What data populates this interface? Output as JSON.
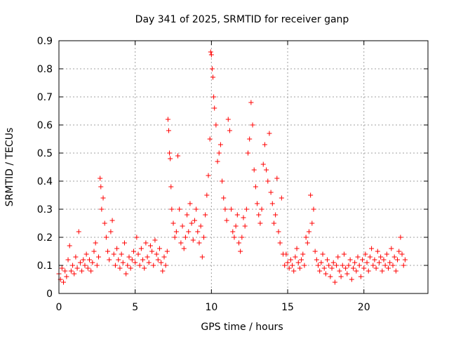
{
  "chart_data": {
    "type": "scatter",
    "title": "Day 341 of 2025, SRMTID for receiver ganp",
    "xlabel": "GPS time / hours",
    "ylabel": "SRMTID / TECUs",
    "xlim": [
      0,
      24.2
    ],
    "ylim": [
      0,
      0.9
    ],
    "xticks": [
      {
        "value": 0,
        "label": "0"
      },
      {
        "value": 5,
        "label": "5"
      },
      {
        "value": 10,
        "label": "10"
      },
      {
        "value": 15,
        "label": "15"
      },
      {
        "value": 20,
        "label": "20"
      }
    ],
    "yticks": [
      {
        "value": 0,
        "label": "0"
      },
      {
        "value": 0.1,
        "label": "0.1"
      },
      {
        "value": 0.2,
        "label": "0.2"
      },
      {
        "value": 0.3,
        "label": "0.3"
      },
      {
        "value": 0.4,
        "label": "0.4"
      },
      {
        "value": 0.5,
        "label": "0.5"
      },
      {
        "value": 0.6,
        "label": "0.6"
      },
      {
        "value": 0.7,
        "label": "0.7"
      },
      {
        "value": 0.8,
        "label": "0.8"
      },
      {
        "value": 0.9,
        "label": "0.9"
      }
    ],
    "grid": true,
    "marker": "+",
    "series": [
      {
        "name": "SRMTID",
        "color": "#ff0000",
        "points": [
          [
            0.0,
            0.07
          ],
          [
            0.1,
            0.05
          ],
          [
            0.2,
            0.09
          ],
          [
            0.3,
            0.04
          ],
          [
            0.4,
            0.08
          ],
          [
            0.5,
            0.06
          ],
          [
            0.6,
            0.12
          ],
          [
            0.7,
            0.17
          ],
          [
            0.8,
            0.08
          ],
          [
            0.9,
            0.1
          ],
          [
            1.0,
            0.07
          ],
          [
            1.1,
            0.13
          ],
          [
            1.2,
            0.09
          ],
          [
            1.3,
            0.22
          ],
          [
            1.4,
            0.11
          ],
          [
            1.5,
            0.08
          ],
          [
            1.6,
            0.12
          ],
          [
            1.7,
            0.1
          ],
          [
            1.8,
            0.14
          ],
          [
            1.9,
            0.09
          ],
          [
            2.0,
            0.12
          ],
          [
            2.1,
            0.08
          ],
          [
            2.2,
            0.11
          ],
          [
            2.3,
            0.15
          ],
          [
            2.4,
            0.18
          ],
          [
            2.5,
            0.1
          ],
          [
            2.6,
            0.13
          ],
          [
            2.7,
            0.41
          ],
          [
            2.75,
            0.38
          ],
          [
            2.8,
            0.3
          ],
          [
            2.9,
            0.34
          ],
          [
            3.0,
            0.25
          ],
          [
            3.1,
            0.2
          ],
          [
            3.2,
            0.15
          ],
          [
            3.3,
            0.12
          ],
          [
            3.4,
            0.22
          ],
          [
            3.5,
            0.26
          ],
          [
            3.6,
            0.14
          ],
          [
            3.7,
            0.1
          ],
          [
            3.8,
            0.16
          ],
          [
            3.9,
            0.12
          ],
          [
            4.0,
            0.09
          ],
          [
            4.1,
            0.14
          ],
          [
            4.2,
            0.11
          ],
          [
            4.3,
            0.18
          ],
          [
            4.4,
            0.07
          ],
          [
            4.5,
            0.1
          ],
          [
            4.6,
            0.13
          ],
          [
            4.7,
            0.09
          ],
          [
            4.8,
            0.12
          ],
          [
            4.9,
            0.15
          ],
          [
            5.0,
            0.11
          ],
          [
            5.1,
            0.2
          ],
          [
            5.2,
            0.14
          ],
          [
            5.3,
            0.1
          ],
          [
            5.4,
            0.16
          ],
          [
            5.5,
            0.12
          ],
          [
            5.6,
            0.09
          ],
          [
            5.7,
            0.18
          ],
          [
            5.8,
            0.13
          ],
          [
            5.9,
            0.11
          ],
          [
            6.0,
            0.17
          ],
          [
            6.1,
            0.15
          ],
          [
            6.2,
            0.1
          ],
          [
            6.3,
            0.19
          ],
          [
            6.4,
            0.14
          ],
          [
            6.5,
            0.12
          ],
          [
            6.6,
            0.16
          ],
          [
            6.7,
            0.11
          ],
          [
            6.8,
            0.08
          ],
          [
            6.9,
            0.13
          ],
          [
            7.0,
            0.1
          ],
          [
            7.1,
            0.15
          ],
          [
            7.15,
            0.62
          ],
          [
            7.2,
            0.58
          ],
          [
            7.25,
            0.5
          ],
          [
            7.3,
            0.48
          ],
          [
            7.35,
            0.38
          ],
          [
            7.4,
            0.3
          ],
          [
            7.5,
            0.25
          ],
          [
            7.6,
            0.2
          ],
          [
            7.7,
            0.22
          ],
          [
            7.8,
            0.49
          ],
          [
            7.9,
            0.3
          ],
          [
            8.0,
            0.18
          ],
          [
            8.1,
            0.24
          ],
          [
            8.2,
            0.16
          ],
          [
            8.3,
            0.2
          ],
          [
            8.4,
            0.28
          ],
          [
            8.5,
            0.22
          ],
          [
            8.6,
            0.32
          ],
          [
            8.7,
            0.25
          ],
          [
            8.8,
            0.19
          ],
          [
            8.9,
            0.26
          ],
          [
            9.0,
            0.3
          ],
          [
            9.1,
            0.22
          ],
          [
            9.2,
            0.18
          ],
          [
            9.3,
            0.24
          ],
          [
            9.4,
            0.13
          ],
          [
            9.5,
            0.2
          ],
          [
            9.6,
            0.28
          ],
          [
            9.7,
            0.35
          ],
          [
            9.8,
            0.42
          ],
          [
            9.9,
            0.55
          ],
          [
            9.95,
            0.86
          ],
          [
            10.0,
            0.85
          ],
          [
            10.05,
            0.8
          ],
          [
            10.1,
            0.77
          ],
          [
            10.15,
            0.7
          ],
          [
            10.2,
            0.66
          ],
          [
            10.3,
            0.6
          ],
          [
            10.4,
            0.47
          ],
          [
            10.5,
            0.5
          ],
          [
            10.6,
            0.53
          ],
          [
            10.7,
            0.4
          ],
          [
            10.8,
            0.34
          ],
          [
            10.9,
            0.3
          ],
          [
            11.0,
            0.26
          ],
          [
            11.1,
            0.62
          ],
          [
            11.2,
            0.58
          ],
          [
            11.3,
            0.3
          ],
          [
            11.4,
            0.22
          ],
          [
            11.5,
            0.2
          ],
          [
            11.6,
            0.24
          ],
          [
            11.7,
            0.28
          ],
          [
            11.8,
            0.18
          ],
          [
            11.9,
            0.15
          ],
          [
            12.0,
            0.2
          ],
          [
            12.1,
            0.27
          ],
          [
            12.2,
            0.24
          ],
          [
            12.3,
            0.3
          ],
          [
            12.4,
            0.5
          ],
          [
            12.5,
            0.55
          ],
          [
            12.6,
            0.68
          ],
          [
            12.7,
            0.6
          ],
          [
            12.8,
            0.44
          ],
          [
            12.9,
            0.38
          ],
          [
            13.0,
            0.32
          ],
          [
            13.1,
            0.28
          ],
          [
            13.2,
            0.25
          ],
          [
            13.3,
            0.3
          ],
          [
            13.4,
            0.46
          ],
          [
            13.5,
            0.53
          ],
          [
            13.6,
            0.44
          ],
          [
            13.7,
            0.4
          ],
          [
            13.8,
            0.57
          ],
          [
            13.9,
            0.36
          ],
          [
            14.0,
            0.32
          ],
          [
            14.1,
            0.25
          ],
          [
            14.2,
            0.28
          ],
          [
            14.3,
            0.41
          ],
          [
            14.4,
            0.22
          ],
          [
            14.5,
            0.18
          ],
          [
            14.6,
            0.34
          ],
          [
            14.7,
            0.14
          ],
          [
            14.8,
            0.1
          ],
          [
            14.9,
            0.14
          ],
          [
            15.0,
            0.11
          ],
          [
            15.1,
            0.09
          ],
          [
            15.2,
            0.12
          ],
          [
            15.3,
            0.1
          ],
          [
            15.4,
            0.08
          ],
          [
            15.5,
            0.13
          ],
          [
            15.6,
            0.16
          ],
          [
            15.7,
            0.11
          ],
          [
            15.8,
            0.09
          ],
          [
            15.9,
            0.12
          ],
          [
            16.0,
            0.14
          ],
          [
            16.1,
            0.1
          ],
          [
            16.2,
            0.2
          ],
          [
            16.3,
            0.18
          ],
          [
            16.4,
            0.22
          ],
          [
            16.5,
            0.35
          ],
          [
            16.6,
            0.25
          ],
          [
            16.7,
            0.3
          ],
          [
            16.8,
            0.15
          ],
          [
            16.9,
            0.12
          ],
          [
            17.0,
            0.1
          ],
          [
            17.1,
            0.08
          ],
          [
            17.2,
            0.11
          ],
          [
            17.3,
            0.14
          ],
          [
            17.4,
            0.09
          ],
          [
            17.5,
            0.07
          ],
          [
            17.6,
            0.12
          ],
          [
            17.7,
            0.1
          ],
          [
            17.8,
            0.06
          ],
          [
            17.9,
            0.09
          ],
          [
            18.0,
            0.11
          ],
          [
            18.1,
            0.04
          ],
          [
            18.2,
            0.1
          ],
          [
            18.3,
            0.13
          ],
          [
            18.4,
            0.08
          ],
          [
            18.5,
            0.06
          ],
          [
            18.6,
            0.1
          ],
          [
            18.7,
            0.14
          ],
          [
            18.8,
            0.09
          ],
          [
            18.9,
            0.07
          ],
          [
            19.0,
            0.1
          ],
          [
            19.1,
            0.12
          ],
          [
            19.2,
            0.05
          ],
          [
            19.3,
            0.09
          ],
          [
            19.4,
            0.11
          ],
          [
            19.5,
            0.08
          ],
          [
            19.6,
            0.13
          ],
          [
            19.7,
            0.1
          ],
          [
            19.8,
            0.06
          ],
          [
            19.9,
            0.12
          ],
          [
            20.0,
            0.09
          ],
          [
            20.1,
            0.14
          ],
          [
            20.2,
            0.11
          ],
          [
            20.3,
            0.08
          ],
          [
            20.4,
            0.13
          ],
          [
            20.5,
            0.16
          ],
          [
            20.6,
            0.1
          ],
          [
            20.7,
            0.12
          ],
          [
            20.8,
            0.09
          ],
          [
            20.9,
            0.15
          ],
          [
            21.0,
            0.11
          ],
          [
            21.1,
            0.13
          ],
          [
            21.2,
            0.08
          ],
          [
            21.3,
            0.12
          ],
          [
            21.4,
            0.1
          ],
          [
            21.5,
            0.14
          ],
          [
            21.6,
            0.09
          ],
          [
            21.7,
            0.11
          ],
          [
            21.8,
            0.16
          ],
          [
            21.9,
            0.1
          ],
          [
            22.0,
            0.13
          ],
          [
            22.1,
            0.08
          ],
          [
            22.2,
            0.12
          ],
          [
            22.3,
            0.15
          ],
          [
            22.4,
            0.2
          ],
          [
            22.5,
            0.14
          ],
          [
            22.6,
            0.1
          ],
          [
            22.7,
            0.12
          ]
        ]
      }
    ]
  }
}
